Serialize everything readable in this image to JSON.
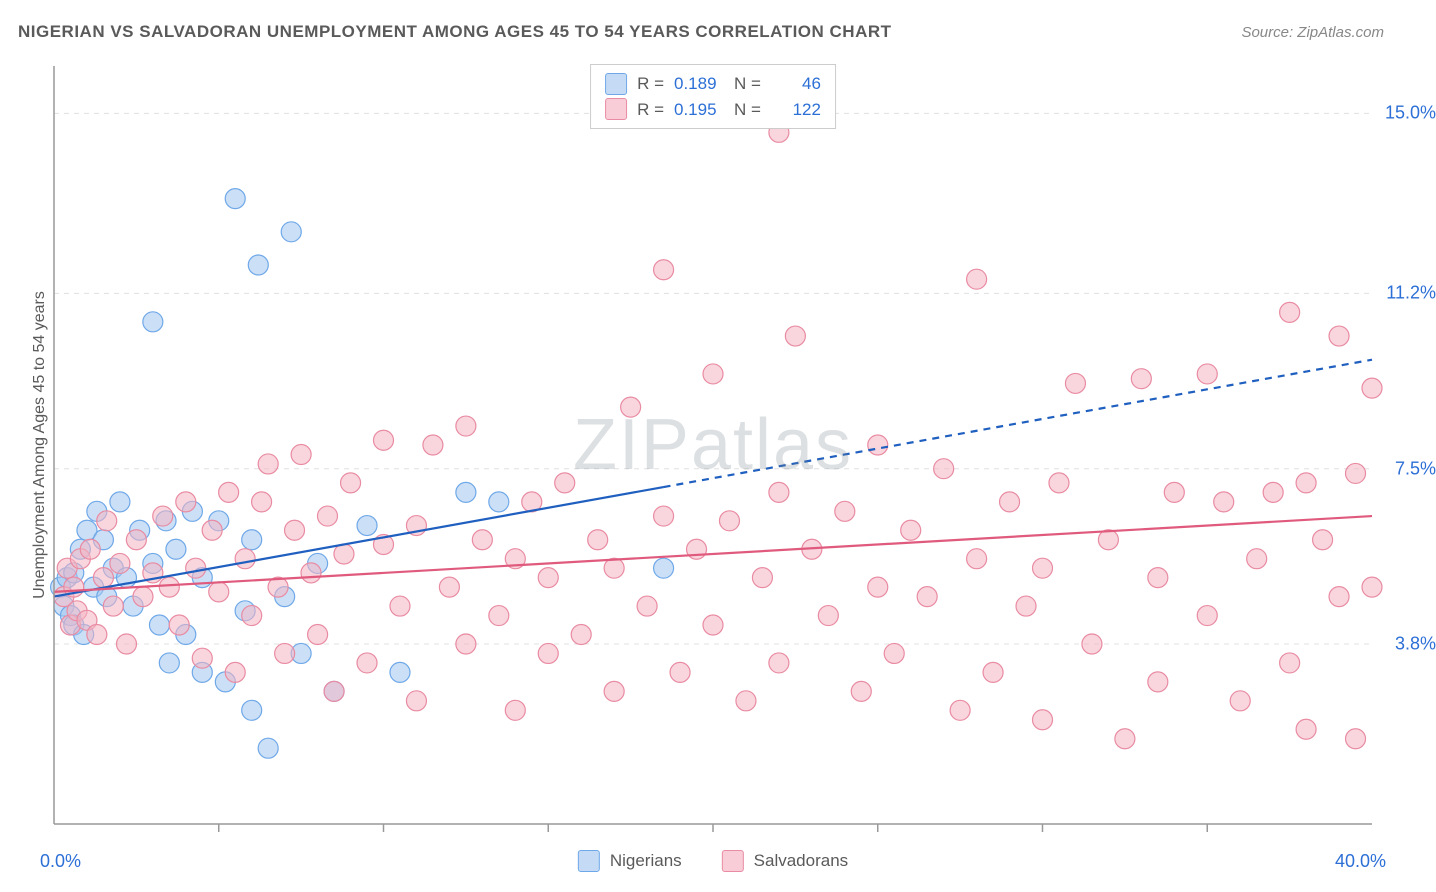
{
  "title": "NIGERIAN VS SALVADORAN UNEMPLOYMENT AMONG AGES 45 TO 54 YEARS CORRELATION CHART",
  "source": "Source: ZipAtlas.com",
  "y_axis_label": "Unemployment Among Ages 45 to 54 years",
  "watermark": {
    "part1": "ZIP",
    "part2": "atlas"
  },
  "chart": {
    "type": "scatter",
    "background_color": "#ffffff",
    "grid_color": "#e0e0e0",
    "axis_color": "#999999",
    "x_axis": {
      "min": 0,
      "max": 40,
      "min_label": "0.0%",
      "max_label": "40.0%",
      "tick_positions": [
        5,
        10,
        15,
        20,
        25,
        30,
        35
      ]
    },
    "y_axis": {
      "min": 0,
      "max": 16,
      "ticks": [
        3.8,
        7.5,
        11.2,
        15.0
      ],
      "tick_labels": [
        "3.8%",
        "7.5%",
        "11.2%",
        "15.0%"
      ]
    },
    "legend_stats": [
      {
        "series": "nigerians",
        "swatch_fill": "#c5dbf5",
        "swatch_stroke": "#6fa8e8",
        "r_label": "R =",
        "r_value": "0.189",
        "n_label": "N =",
        "n_value": "46"
      },
      {
        "series": "salvadorans",
        "swatch_fill": "#f9cdd8",
        "swatch_stroke": "#e98ba2",
        "r_label": "R =",
        "r_value": "0.195",
        "n_label": "N =",
        "n_value": "122"
      }
    ],
    "bottom_legend": [
      {
        "swatch_fill": "#c5dbf5",
        "swatch_stroke": "#6fa8e8",
        "label": "Nigerians"
      },
      {
        "swatch_fill": "#f9cdd8",
        "swatch_stroke": "#e98ba2",
        "label": "Salvadorans"
      }
    ],
    "series": [
      {
        "name": "nigerians",
        "marker_fill": "rgba(160,198,240,0.55)",
        "marker_stroke": "#6fa8e8",
        "marker_radius": 10,
        "trend_color": "#1f5fbf",
        "trend_width": 2.2,
        "trend_solid_xmax": 18.5,
        "trend": {
          "x1": 0,
          "y1": 4.8,
          "x2": 40,
          "y2": 9.8
        },
        "points": [
          [
            0.2,
            5.0
          ],
          [
            0.3,
            4.6
          ],
          [
            0.4,
            5.2
          ],
          [
            0.5,
            4.4
          ],
          [
            0.6,
            5.3
          ],
          [
            0.6,
            4.2
          ],
          [
            0.8,
            5.8
          ],
          [
            0.9,
            4.0
          ],
          [
            1.0,
            6.2
          ],
          [
            1.2,
            5.0
          ],
          [
            1.3,
            6.6
          ],
          [
            1.5,
            6.0
          ],
          [
            1.6,
            4.8
          ],
          [
            1.8,
            5.4
          ],
          [
            2.0,
            6.8
          ],
          [
            2.2,
            5.2
          ],
          [
            2.4,
            4.6
          ],
          [
            2.6,
            6.2
          ],
          [
            3.0,
            5.5
          ],
          [
            3.0,
            10.6
          ],
          [
            3.2,
            4.2
          ],
          [
            3.4,
            6.4
          ],
          [
            3.5,
            3.4
          ],
          [
            3.7,
            5.8
          ],
          [
            4.0,
            4.0
          ],
          [
            4.2,
            6.6
          ],
          [
            4.5,
            3.2
          ],
          [
            4.5,
            5.2
          ],
          [
            5.0,
            6.4
          ],
          [
            5.2,
            3.0
          ],
          [
            5.5,
            13.2
          ],
          [
            5.8,
            4.5
          ],
          [
            6.0,
            6.0
          ],
          [
            6.0,
            2.4
          ],
          [
            6.2,
            11.8
          ],
          [
            6.5,
            1.6
          ],
          [
            7.0,
            4.8
          ],
          [
            7.2,
            12.5
          ],
          [
            7.5,
            3.6
          ],
          [
            8.0,
            5.5
          ],
          [
            8.5,
            2.8
          ],
          [
            9.5,
            6.3
          ],
          [
            10.5,
            3.2
          ],
          [
            12.5,
            7.0
          ],
          [
            13.5,
            6.8
          ],
          [
            18.5,
            5.4
          ]
        ]
      },
      {
        "name": "salvadorans",
        "marker_fill": "rgba(244,180,195,0.55)",
        "marker_stroke": "#e98ba2",
        "marker_radius": 10,
        "trend_color": "#e05a7d",
        "trend_width": 2.2,
        "trend_solid_xmax": 40,
        "trend": {
          "x1": 0,
          "y1": 4.9,
          "x2": 40,
          "y2": 6.5
        },
        "points": [
          [
            0.3,
            4.8
          ],
          [
            0.4,
            5.4
          ],
          [
            0.5,
            4.2
          ],
          [
            0.6,
            5.0
          ],
          [
            0.7,
            4.5
          ],
          [
            0.8,
            5.6
          ],
          [
            1.0,
            4.3
          ],
          [
            1.1,
            5.8
          ],
          [
            1.3,
            4.0
          ],
          [
            1.5,
            5.2
          ],
          [
            1.6,
            6.4
          ],
          [
            1.8,
            4.6
          ],
          [
            2.0,
            5.5
          ],
          [
            2.2,
            3.8
          ],
          [
            2.5,
            6.0
          ],
          [
            2.7,
            4.8
          ],
          [
            3.0,
            5.3
          ],
          [
            3.3,
            6.5
          ],
          [
            3.5,
            5.0
          ],
          [
            3.8,
            4.2
          ],
          [
            4.0,
            6.8
          ],
          [
            4.3,
            5.4
          ],
          [
            4.5,
            3.5
          ],
          [
            4.8,
            6.2
          ],
          [
            5.0,
            4.9
          ],
          [
            5.3,
            7.0
          ],
          [
            5.5,
            3.2
          ],
          [
            5.8,
            5.6
          ],
          [
            6.0,
            4.4
          ],
          [
            6.3,
            6.8
          ],
          [
            6.5,
            7.6
          ],
          [
            6.8,
            5.0
          ],
          [
            7.0,
            3.6
          ],
          [
            7.3,
            6.2
          ],
          [
            7.5,
            7.8
          ],
          [
            7.8,
            5.3
          ],
          [
            8.0,
            4.0
          ],
          [
            8.3,
            6.5
          ],
          [
            8.5,
            2.8
          ],
          [
            8.8,
            5.7
          ],
          [
            9.0,
            7.2
          ],
          [
            9.5,
            3.4
          ],
          [
            10.0,
            5.9
          ],
          [
            10.0,
            8.1
          ],
          [
            10.5,
            4.6
          ],
          [
            11.0,
            2.6
          ],
          [
            11.0,
            6.3
          ],
          [
            11.5,
            8.0
          ],
          [
            12.0,
            5.0
          ],
          [
            12.5,
            3.8
          ],
          [
            12.5,
            8.4
          ],
          [
            13.0,
            6.0
          ],
          [
            13.5,
            4.4
          ],
          [
            14.0,
            5.6
          ],
          [
            14.0,
            2.4
          ],
          [
            14.5,
            6.8
          ],
          [
            15.0,
            3.6
          ],
          [
            15.0,
            5.2
          ],
          [
            15.5,
            7.2
          ],
          [
            16.0,
            4.0
          ],
          [
            16.5,
            6.0
          ],
          [
            17.0,
            2.8
          ],
          [
            17.0,
            5.4
          ],
          [
            17.5,
            8.8
          ],
          [
            18.0,
            4.6
          ],
          [
            18.5,
            6.5
          ],
          [
            18.5,
            11.7
          ],
          [
            19.0,
            3.2
          ],
          [
            19.5,
            5.8
          ],
          [
            20.0,
            9.5
          ],
          [
            20.0,
            4.2
          ],
          [
            20.5,
            6.4
          ],
          [
            21.0,
            2.6
          ],
          [
            21.5,
            5.2
          ],
          [
            22.0,
            7.0
          ],
          [
            22.0,
            3.4
          ],
          [
            22.0,
            14.6
          ],
          [
            22.5,
            10.3
          ],
          [
            23.0,
            5.8
          ],
          [
            23.5,
            4.4
          ],
          [
            24.0,
            6.6
          ],
          [
            24.5,
            2.8
          ],
          [
            25.0,
            5.0
          ],
          [
            25.0,
            8.0
          ],
          [
            25.5,
            3.6
          ],
          [
            26.0,
            6.2
          ],
          [
            26.5,
            4.8
          ],
          [
            27.0,
            7.5
          ],
          [
            27.5,
            2.4
          ],
          [
            28.0,
            5.6
          ],
          [
            28.0,
            11.5
          ],
          [
            28.5,
            3.2
          ],
          [
            29.0,
            6.8
          ],
          [
            29.5,
            4.6
          ],
          [
            30.0,
            5.4
          ],
          [
            30.0,
            2.2
          ],
          [
            30.5,
            7.2
          ],
          [
            31.0,
            9.3
          ],
          [
            31.5,
            3.8
          ],
          [
            32.0,
            6.0
          ],
          [
            32.5,
            1.8
          ],
          [
            33.0,
            9.4
          ],
          [
            33.5,
            5.2
          ],
          [
            33.5,
            3.0
          ],
          [
            34.0,
            7.0
          ],
          [
            35.0,
            4.4
          ],
          [
            35.0,
            9.5
          ],
          [
            35.5,
            6.8
          ],
          [
            36.0,
            2.6
          ],
          [
            36.5,
            5.6
          ],
          [
            37.0,
            7.0
          ],
          [
            37.5,
            10.8
          ],
          [
            37.5,
            3.4
          ],
          [
            38.0,
            7.2
          ],
          [
            38.0,
            2.0
          ],
          [
            38.5,
            6.0
          ],
          [
            39.0,
            10.3
          ],
          [
            39.0,
            4.8
          ],
          [
            39.5,
            1.8
          ],
          [
            39.5,
            7.4
          ],
          [
            40.0,
            9.2
          ],
          [
            40.0,
            5.0
          ]
        ]
      }
    ]
  }
}
